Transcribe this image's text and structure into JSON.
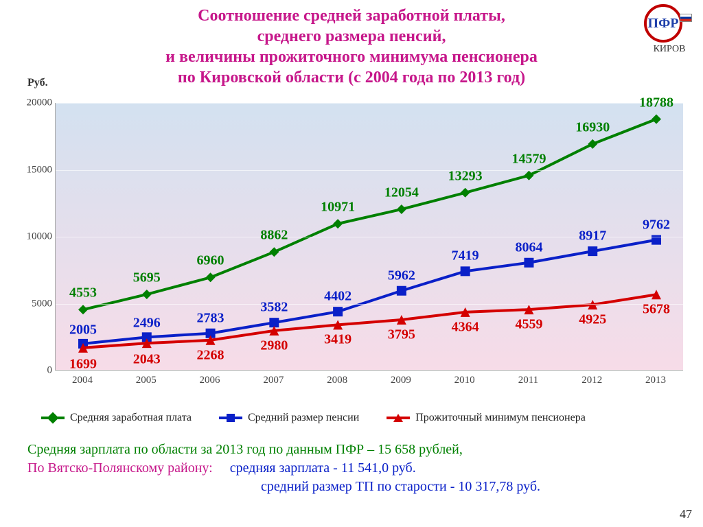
{
  "title": {
    "l1": "Соотношение средней заработной платы,",
    "l2": "среднего размера пенсий,",
    "l3": "и величины прожиточного минимума пенсионера",
    "l4": "по Кировской области  (с 2004 года по 2013 год)",
    "color": "#c6178a",
    "fontsize": 24
  },
  "logo": {
    "text": "ПФР",
    "label": "КИРОВ"
  },
  "y_unit": "Руб.",
  "chart": {
    "type": "line",
    "background_top": "#d3e1f0",
    "background_bot": "#f7dce8",
    "ylim": [
      0,
      20000
    ],
    "yticks": [
      0,
      5000,
      10000,
      15000,
      20000
    ],
    "categories": [
      "2004",
      "2005",
      "2006",
      "2007",
      "2008",
      "2009",
      "2010",
      "2011",
      "2012",
      "2013"
    ],
    "series": [
      {
        "name": "Средняя заработная плата",
        "color": "#008000",
        "marker": "diamond",
        "line_width": 4,
        "label_fontsize": 20,
        "values": [
          4553,
          5695,
          6960,
          8862,
          10971,
          12054,
          13293,
          14579,
          16930,
          18788
        ]
      },
      {
        "name": "Средний размер пенсии",
        "color": "#0a20c8",
        "marker": "square",
        "line_width": 4,
        "label_fontsize": 20,
        "values": [
          2005,
          2496,
          2783,
          3582,
          4402,
          5962,
          7419,
          8064,
          8917,
          9762
        ]
      },
      {
        "name": "Прожиточный минимум пенсионера",
        "color": "#d40000",
        "marker": "triangle",
        "line_width": 4,
        "label_fontsize": 20,
        "values": [
          1699,
          2043,
          2268,
          2980,
          3419,
          3795,
          4364,
          4559,
          4925,
          5678
        ]
      }
    ]
  },
  "legend": {
    "s1": "Средняя заработная плата",
    "s2": "Средний размер пенсии",
    "s3": "Прожиточный минимум пенсионера"
  },
  "footnotes": {
    "l1": "Средняя зарплата по области за 2013 год по данным ПФР – 15 658 рублей,",
    "l2a": "По Вятско-Полянскому району:",
    "l2b": "средняя зарплата  - 11 541,0  руб.",
    "l3": "средний размер ТП по старости  - 10 317,78 руб.",
    "color1": "#008000",
    "color2a": "#c6178a",
    "color2b": "#0a20c8"
  },
  "pagenum": "47"
}
